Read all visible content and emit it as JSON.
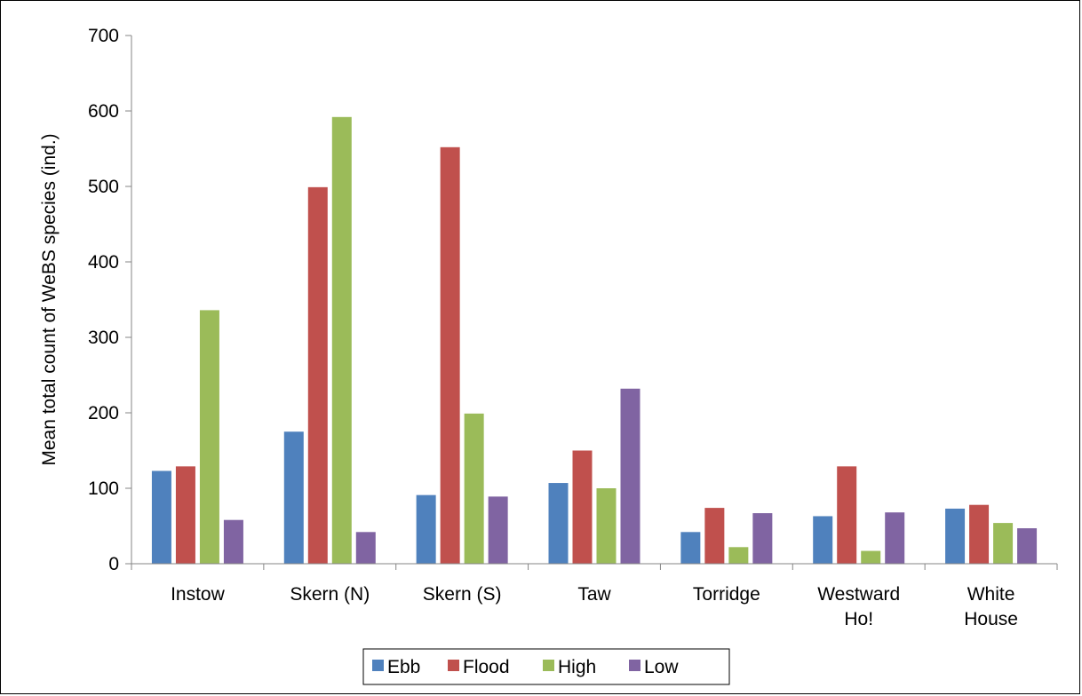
{
  "chart_data": {
    "type": "bar",
    "title": "",
    "xlabel": "",
    "ylabel": "Mean total count of WeBS species (ind.)",
    "ylim": [
      0,
      700
    ],
    "yticks": [
      0,
      100,
      200,
      300,
      400,
      500,
      600,
      700
    ],
    "grid": false,
    "legend_position": "bottom",
    "categories": [
      [
        "Instow"
      ],
      [
        "Skern (N)"
      ],
      [
        "Skern (S)"
      ],
      [
        "Taw"
      ],
      [
        "Torridge"
      ],
      [
        "Westward",
        "Ho!"
      ],
      [
        "White",
        "House"
      ]
    ],
    "series": [
      {
        "name": "Ebb",
        "color": "#4F81BD",
        "values": [
          123,
          175,
          91,
          107,
          42,
          63,
          73
        ]
      },
      {
        "name": "Flood",
        "color": "#C0504D",
        "values": [
          129,
          499,
          552,
          150,
          74,
          129,
          78
        ]
      },
      {
        "name": "High",
        "color": "#9BBB59",
        "values": [
          336,
          592,
          199,
          100,
          22,
          17,
          54
        ]
      },
      {
        "name": "Low",
        "color": "#8064A2",
        "values": [
          58,
          42,
          89,
          232,
          67,
          68,
          47
        ]
      }
    ]
  }
}
